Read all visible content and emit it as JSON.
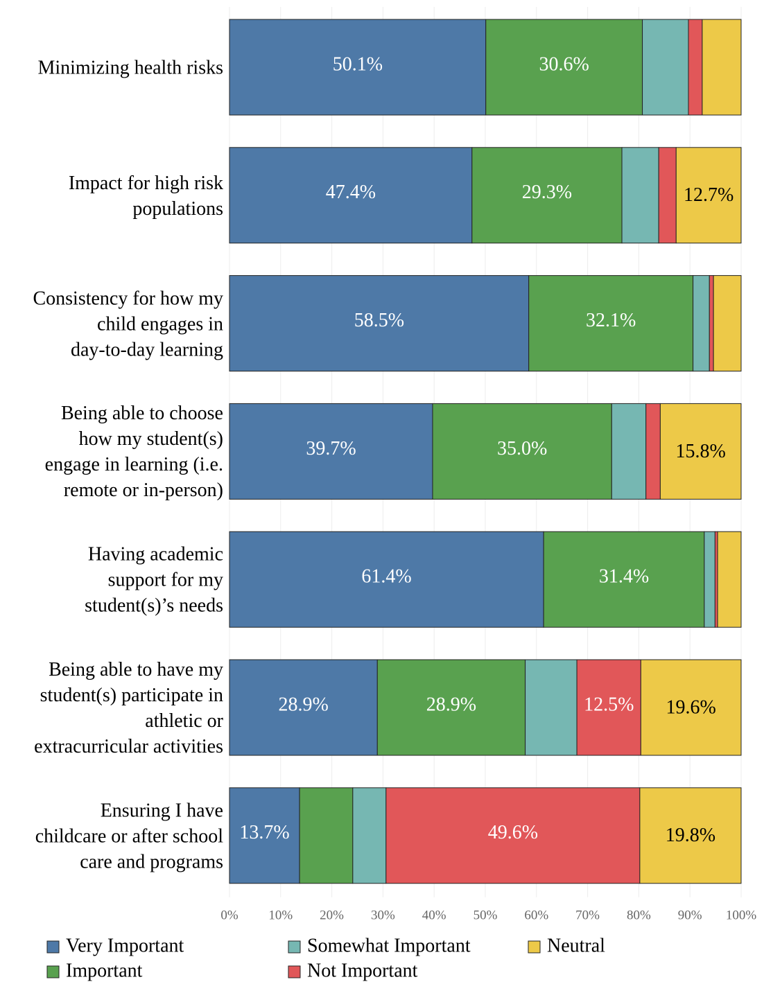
{
  "chart_data": {
    "type": "stacked_barh",
    "categories": [
      "Minimizing health risks",
      "Impact for high risk\npopulations",
      "Consistency for how my\nchild engages in\nday-to-day learning",
      "Being able to choose\nhow my student(s)\nengage in learning (i.e.\nremote or in-person)",
      "Having academic\nsupport for my\nstudent(s)’s needs",
      "Being able to have my\nstudent(s) participate in\nathletic or\nextracurricular activities",
      "Ensuring I have\nchildcare or after school\ncare and programs"
    ],
    "series": [
      {
        "name": "Very Important",
        "color": "#4e79a7",
        "label_color": "#ffffff",
        "values": [
          50.1,
          47.4,
          58.5,
          39.7,
          61.4,
          28.9,
          13.7
        ],
        "value_labels": [
          "50.1%",
          "47.4%",
          "58.5%",
          "39.7%",
          "61.4%",
          "28.9%",
          "13.7%"
        ]
      },
      {
        "name": "Important",
        "color": "#59a14f",
        "label_color": "#ffffff",
        "values": [
          30.6,
          29.3,
          32.1,
          35.0,
          31.4,
          28.9,
          10.4
        ],
        "value_labels": [
          "30.6%",
          "29.3%",
          "32.1%",
          "35.0%",
          "31.4%",
          "28.9%",
          null
        ]
      },
      {
        "name": "Somewhat Important",
        "color": "#76b7b2",
        "label_color": "#ffffff",
        "values": [
          9.0,
          7.2,
          3.2,
          6.7,
          2.1,
          10.1,
          6.5
        ],
        "value_labels": [
          null,
          null,
          null,
          null,
          null,
          null,
          null
        ]
      },
      {
        "name": "Not Important",
        "color": "#e15759",
        "label_color": "#ffffff",
        "values": [
          2.7,
          3.4,
          0.8,
          2.8,
          0.5,
          12.5,
          49.6
        ],
        "value_labels": [
          null,
          null,
          null,
          null,
          null,
          "12.5%",
          "49.6%"
        ]
      },
      {
        "name": "Neutral",
        "color": "#edc948",
        "label_color": "#000000",
        "values": [
          7.6,
          12.7,
          5.4,
          15.8,
          4.6,
          19.6,
          19.8
        ],
        "value_labels": [
          null,
          "12.7%",
          null,
          "15.8%",
          null,
          "19.6%",
          "19.8%"
        ]
      }
    ],
    "xlim": [
      0,
      100
    ],
    "xticks": [
      {
        "value": 0,
        "label": "0%"
      },
      {
        "value": 10,
        "label": "10%"
      },
      {
        "value": 20,
        "label": "20%"
      },
      {
        "value": 30,
        "label": "30%"
      },
      {
        "value": 40,
        "label": "40%"
      },
      {
        "value": 50,
        "label": "50%"
      },
      {
        "value": 60,
        "label": "60%"
      },
      {
        "value": 70,
        "label": "70%"
      },
      {
        "value": 80,
        "label": "80%"
      },
      {
        "value": 90,
        "label": "90%"
      },
      {
        "value": 100,
        "label": "100%"
      }
    ],
    "grid": true,
    "legend": "bottom"
  }
}
